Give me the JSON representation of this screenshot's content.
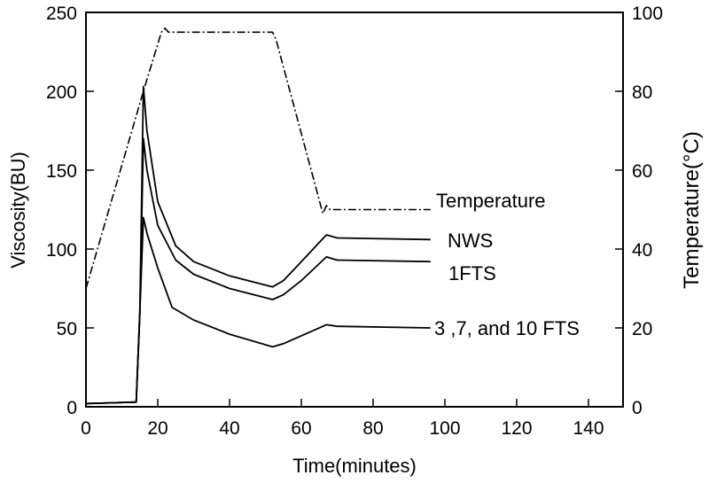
{
  "chart_data": {
    "type": "line",
    "title": "",
    "xlabel": "Time(minutes)",
    "ylabel": "Viscosity(BU)",
    "y2label": "Temperature(°C)",
    "xlim": [
      0,
      150
    ],
    "ylim": [
      0,
      250
    ],
    "y2lim": [
      0,
      100
    ],
    "xticks": [
      0,
      20,
      40,
      60,
      80,
      100,
      120,
      140
    ],
    "yticks": [
      0,
      50,
      100,
      150,
      200,
      250
    ],
    "y2ticks": [
      0,
      20,
      40,
      60,
      80,
      100
    ],
    "grid": false,
    "legend_position": "inline-right",
    "series": [
      {
        "name": "Temperature",
        "axis": "right",
        "style": "dash-dot",
        "x": [
          0,
          16,
          21,
          22,
          23,
          52,
          53,
          66,
          67,
          68,
          96
        ],
        "values": [
          30,
          80,
          95,
          96,
          95,
          95,
          93,
          49,
          51,
          50,
          50
        ]
      },
      {
        "name": "NWS",
        "axis": "left",
        "style": "solid",
        "x": [
          0,
          14,
          15,
          16,
          17,
          20,
          25,
          30,
          40,
          52,
          55,
          60,
          67,
          70,
          96
        ],
        "values": [
          2,
          3,
          60,
          203,
          175,
          130,
          102,
          92,
          83,
          76,
          80,
          92,
          109,
          107,
          106
        ]
      },
      {
        "name": "1FTS",
        "axis": "left",
        "style": "solid",
        "x": [
          0,
          14,
          15,
          16,
          17,
          20,
          25,
          30,
          40,
          52,
          55,
          60,
          67,
          70,
          96
        ],
        "values": [
          2,
          3,
          60,
          170,
          150,
          115,
          93,
          84,
          75,
          68,
          71,
          80,
          95,
          93,
          92
        ]
      },
      {
        "name": "3 ,7, and 10 FTS",
        "axis": "left",
        "style": "solid",
        "x": [
          0,
          14,
          15,
          16,
          17,
          20,
          24,
          30,
          40,
          52,
          55,
          60,
          67,
          70,
          96
        ],
        "values": [
          2,
          3,
          60,
          120,
          110,
          88,
          63,
          55,
          46,
          38,
          40,
          45,
          52,
          51,
          50
        ]
      }
    ]
  }
}
